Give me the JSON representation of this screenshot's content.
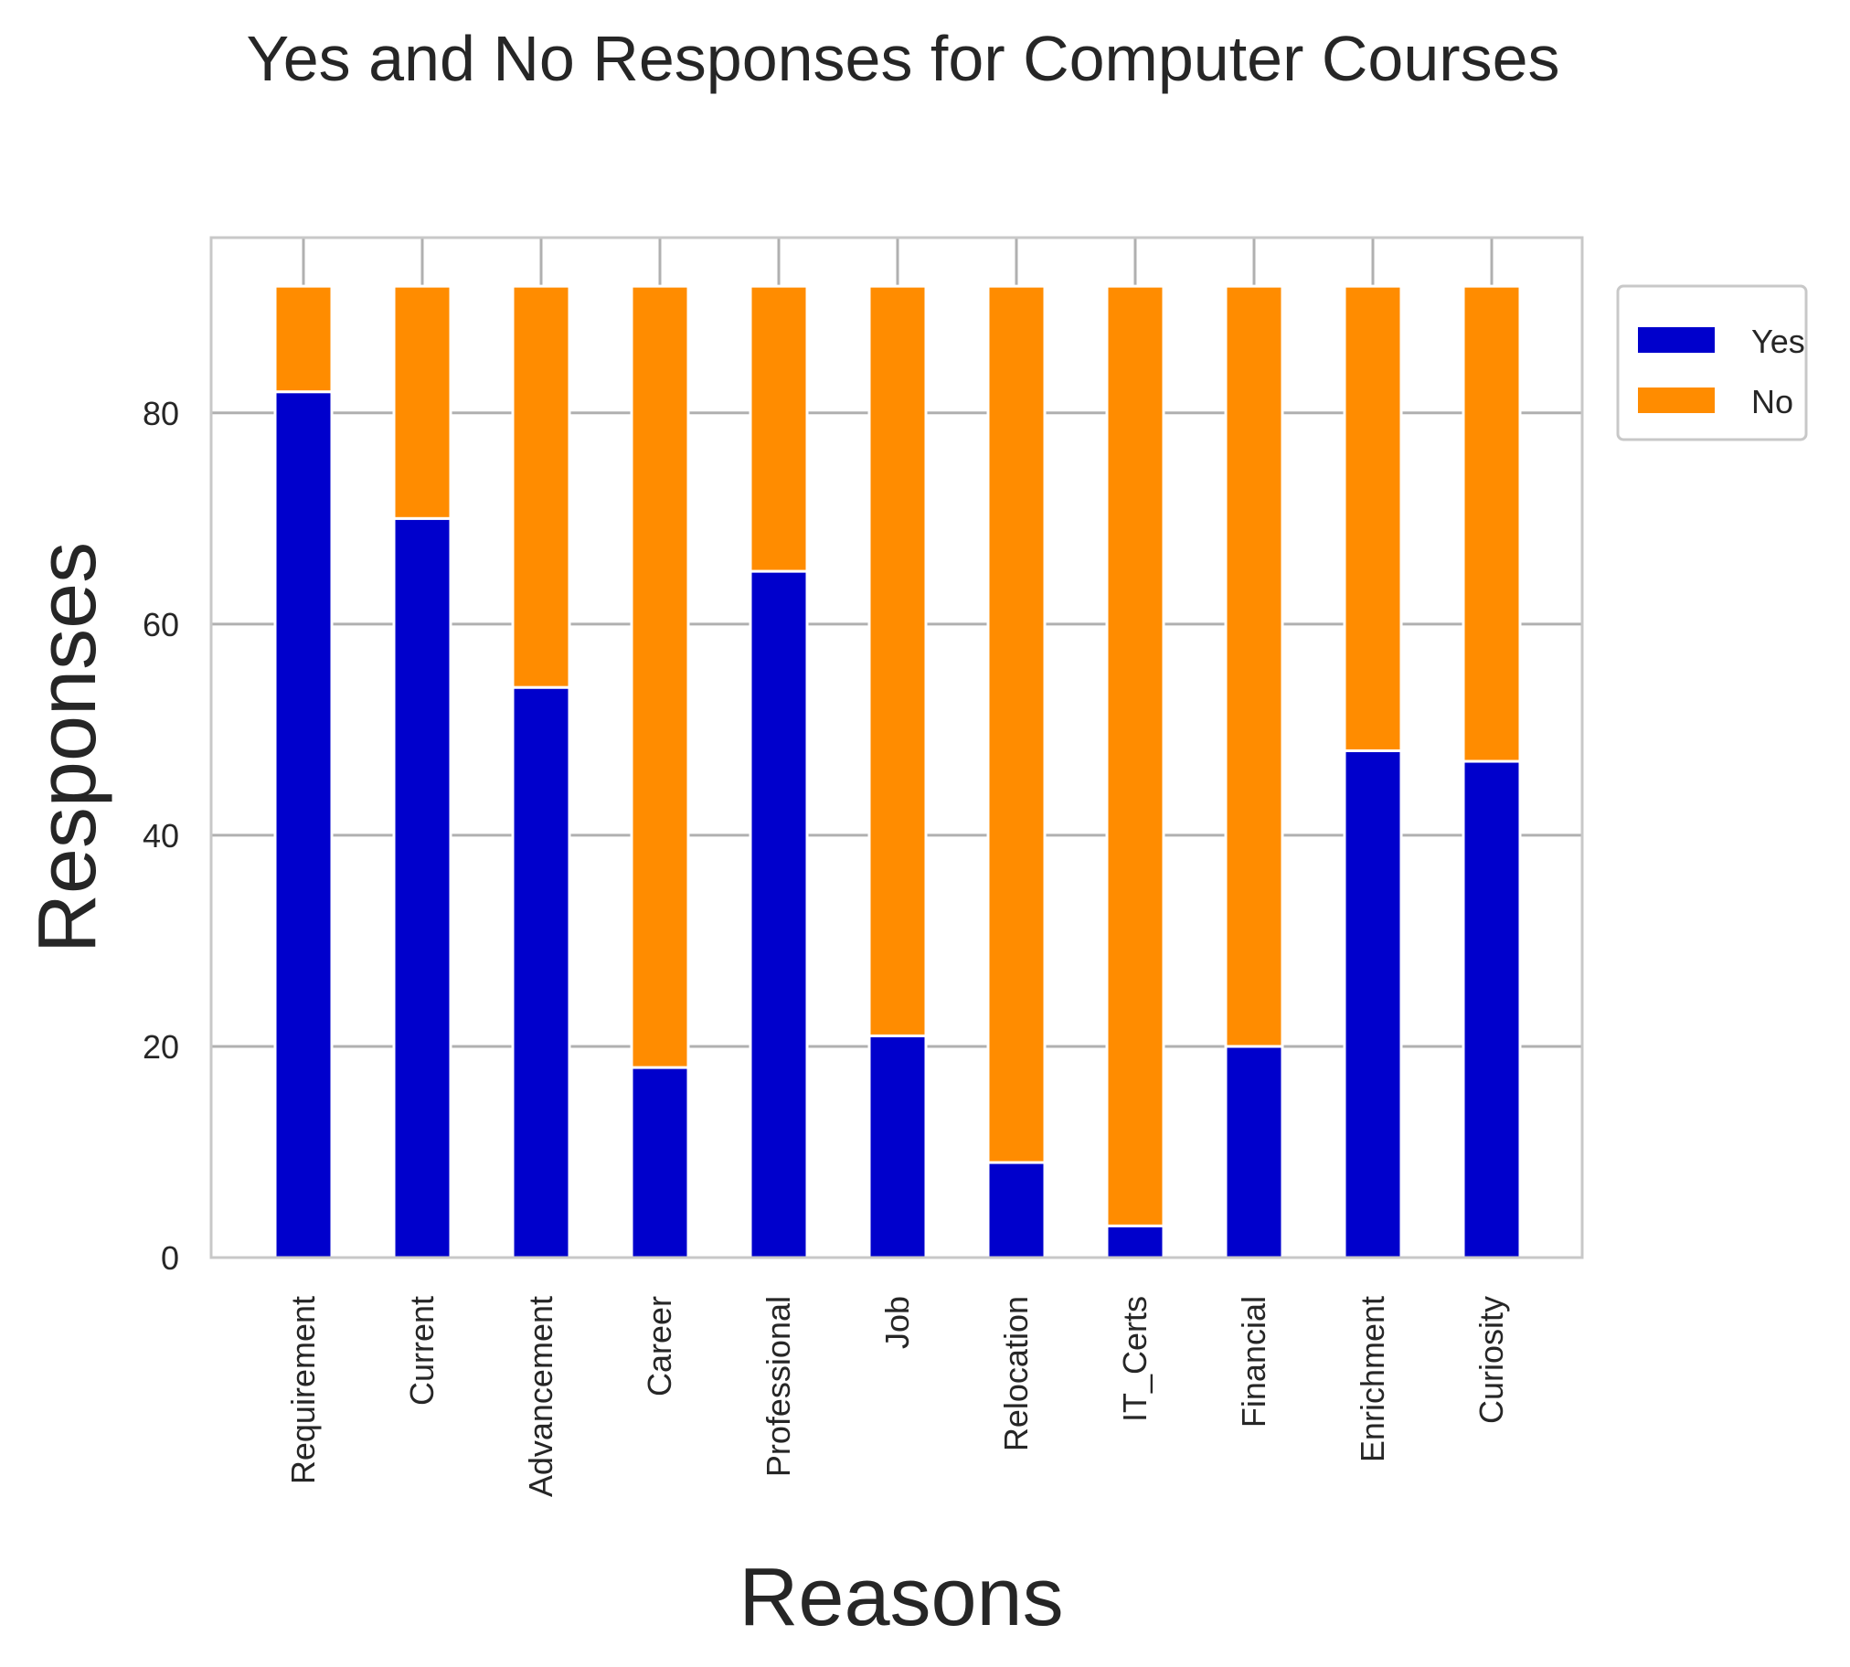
{
  "chart_data": {
    "type": "bar",
    "stacked": true,
    "title": "Yes and No Responses for Computer Courses",
    "xlabel": "Reasons",
    "ylabel": "Responses",
    "categories": [
      "Requirement",
      "Current",
      "Advancement",
      "Career",
      "Professional",
      "Job",
      "Relocation",
      "IT_Certs",
      "Financial",
      "Enrichment",
      "Curiosity"
    ],
    "series": [
      {
        "name": "Yes",
        "color": "#0000CC",
        "values": [
          82,
          70,
          54,
          18,
          65,
          21,
          9,
          3,
          20,
          48,
          47
        ]
      },
      {
        "name": "No",
        "color": "#FF8C00",
        "values": [
          10,
          22,
          38,
          74,
          27,
          71,
          83,
          89,
          72,
          44,
          45
        ]
      }
    ],
    "ylim": [
      0,
      96.6
    ],
    "yticks": [
      0,
      20,
      40,
      60,
      80
    ],
    "grid": true,
    "legend_position": "upper right, outside plot"
  }
}
